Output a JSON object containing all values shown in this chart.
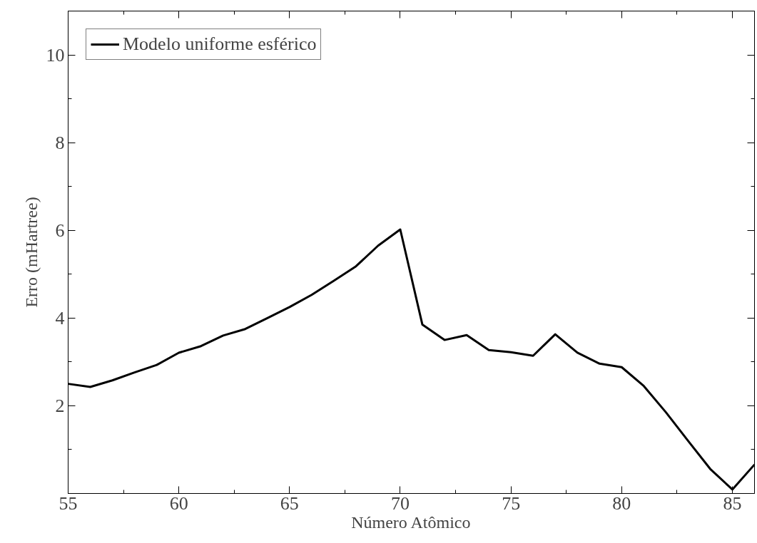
{
  "chart_data": {
    "type": "line",
    "xlabel": "Número Atômico",
    "ylabel": "Erro (mHartree)",
    "x": [
      55,
      56,
      57,
      58,
      59,
      60,
      61,
      62,
      63,
      64,
      65,
      66,
      67,
      68,
      69,
      70,
      71,
      72,
      73,
      74,
      75,
      76,
      77,
      78,
      79,
      80,
      81,
      82,
      83,
      84,
      85,
      86
    ],
    "series": [
      {
        "name": "Modelo uniforme esférico",
        "color": "#000000",
        "values": [
          2.5,
          2.43,
          2.58,
          2.76,
          2.93,
          3.21,
          3.36,
          3.6,
          3.75,
          4.0,
          4.25,
          4.53,
          4.85,
          5.18,
          5.65,
          6.02,
          3.85,
          3.5,
          3.61,
          3.27,
          3.22,
          3.14,
          3.63,
          3.21,
          2.96,
          2.88,
          2.45,
          1.85,
          1.2,
          0.56,
          0.09,
          0.66
        ]
      }
    ],
    "xlim": [
      55,
      86
    ],
    "ylim": [
      0,
      11
    ],
    "xticks": [
      55,
      {
        "value": 57.5,
        "label": null
      },
      60,
      {
        "value": 62.5,
        "label": null
      },
      65,
      {
        "value": 67.5,
        "label": null
      },
      70,
      {
        "value": 72.5,
        "label": null
      },
      75,
      {
        "value": 77.5,
        "label": null
      },
      80,
      {
        "value": 82.5,
        "label": null
      },
      85
    ],
    "yticks": [
      {
        "value": 1,
        "label": null
      },
      2,
      {
        "value": 3,
        "label": null
      },
      4,
      {
        "value": 5,
        "label": null
      },
      6,
      {
        "value": 7,
        "label": null
      },
      8,
      {
        "value": 9,
        "label": null
      },
      10
    ],
    "grid": false,
    "legend": "top left",
    "line_style": "solid",
    "marker": "none"
  }
}
